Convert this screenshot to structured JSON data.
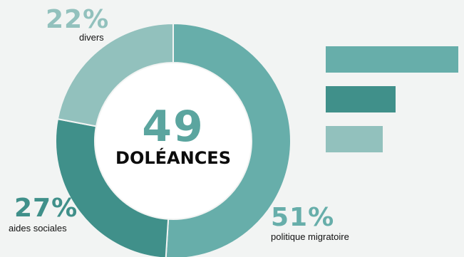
{
  "chart_data": {
    "type": "pie",
    "total_value": "49",
    "total_label": "DOLÉANCES",
    "slices": [
      {
        "label": "politique migratoire",
        "percent_label": "51%",
        "value": 51,
        "color": "#67aeaa"
      },
      {
        "label": "aides sociales",
        "percent_label": "27%",
        "value": 27,
        "color": "#40908a"
      },
      {
        "label": "divers",
        "percent_label": "22%",
        "value": 22,
        "color": "#92c1bd"
      }
    ]
  }
}
